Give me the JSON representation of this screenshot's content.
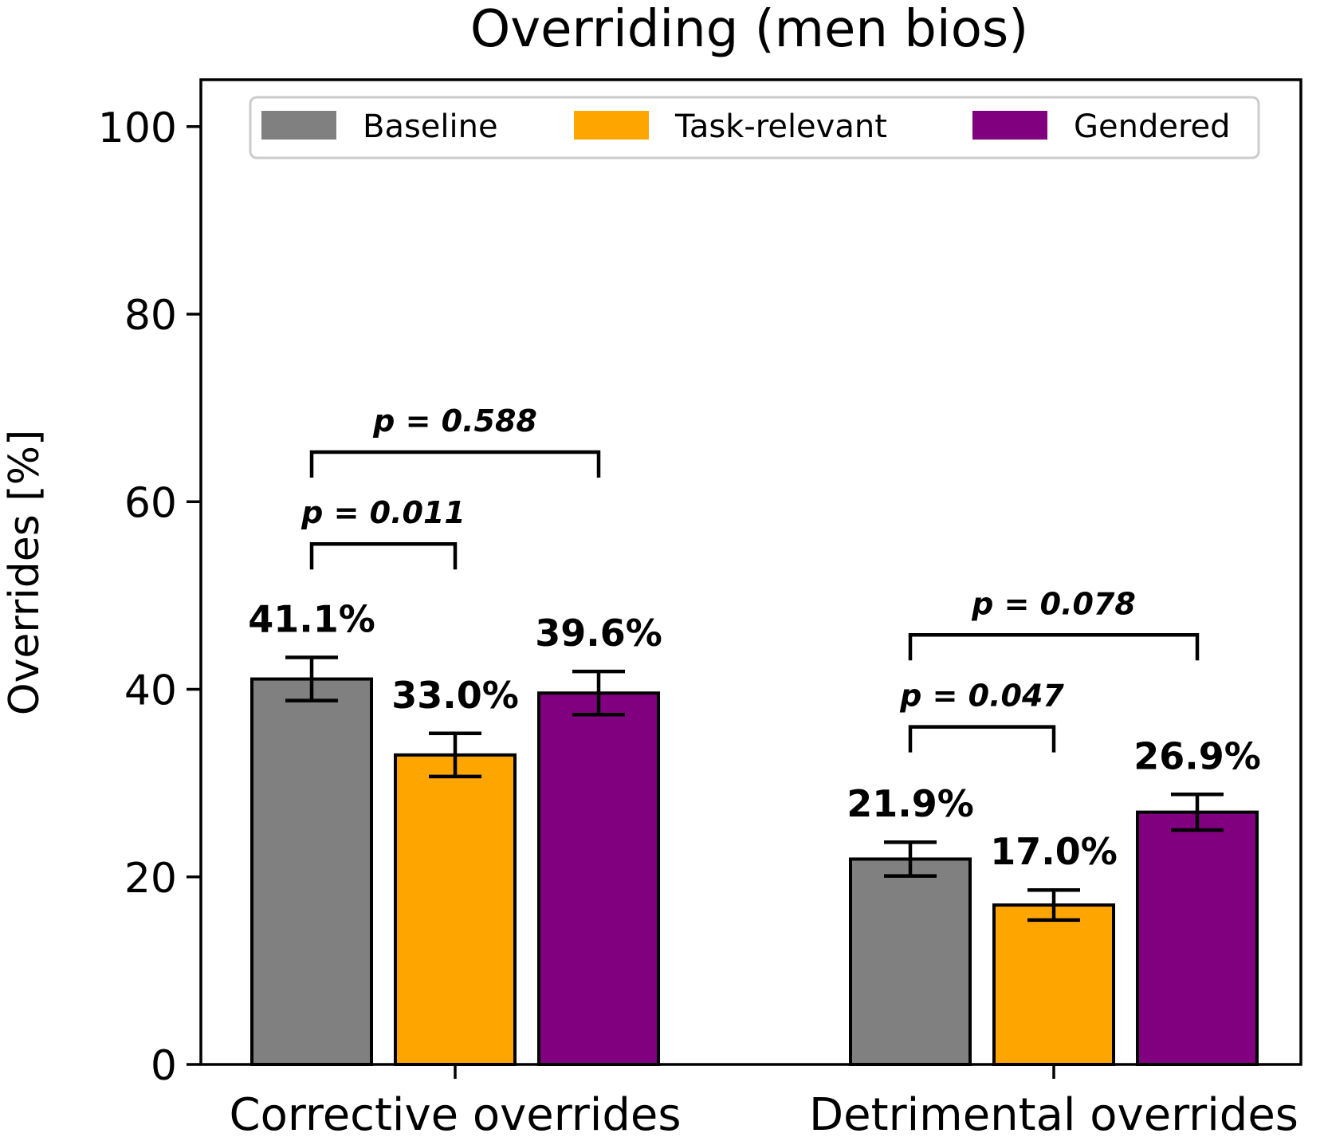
{
  "chart_data": {
    "type": "bar",
    "title": "Overriding (men bios)",
    "xlabel": "",
    "ylabel": "Overrides [%]",
    "ylim": [
      0,
      105
    ],
    "yticks": [
      0,
      20,
      40,
      60,
      80,
      100
    ],
    "grid": false,
    "legend_position": "top",
    "categories": [
      "Corrective overrides",
      "Detrimental overrides"
    ],
    "series": [
      {
        "name": "Baseline",
        "color": "#808080",
        "values": [
          41.1,
          21.9
        ],
        "error": [
          2.3,
          1.8
        ],
        "labels": [
          "41.1%",
          "21.9%"
        ]
      },
      {
        "name": "Task-relevant",
        "color": "#FFA500",
        "values": [
          33.0,
          17.0
        ],
        "error": [
          2.3,
          1.6
        ],
        "labels": [
          "33.0%",
          "17.0%"
        ]
      },
      {
        "name": "Gendered",
        "color": "#800080",
        "values": [
          39.6,
          26.9
        ],
        "error": [
          2.3,
          1.9
        ],
        "labels": [
          "39.6%",
          "26.9%"
        ]
      }
    ],
    "significance": [
      {
        "category": 0,
        "from": 0,
        "to": 1,
        "level": 55.5,
        "text": "p = 0.011"
      },
      {
        "category": 0,
        "from": 0,
        "to": 2,
        "level": 65.3,
        "text": "p = 0.588"
      },
      {
        "category": 1,
        "from": 0,
        "to": 1,
        "level": 36.0,
        "text": "p = 0.047"
      },
      {
        "category": 1,
        "from": 0,
        "to": 2,
        "level": 45.8,
        "text": "p = 0.078"
      }
    ]
  }
}
